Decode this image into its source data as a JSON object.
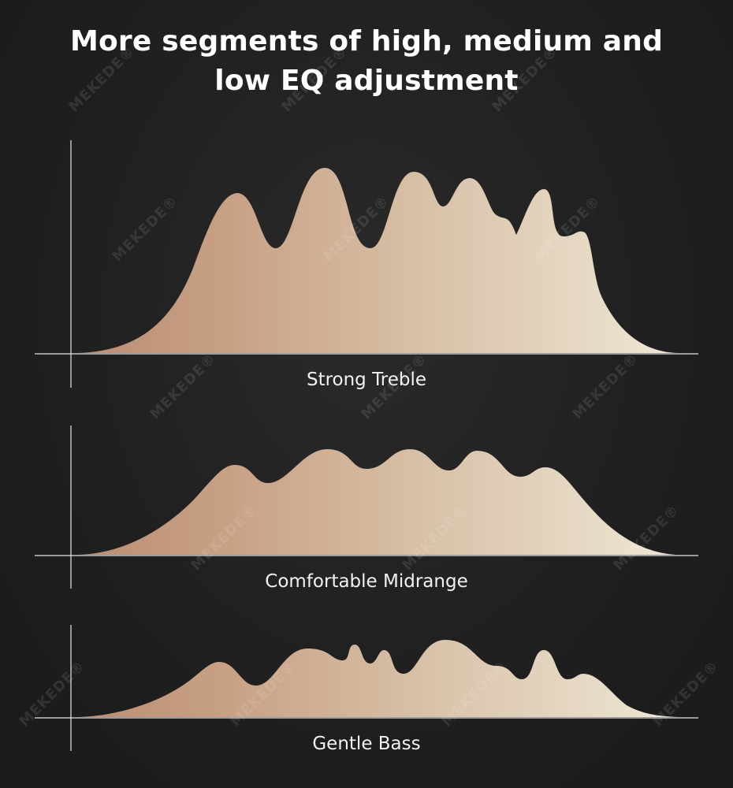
{
  "title": {
    "line1": "More segments of high, medium and",
    "line2": "low EQ adjustment"
  },
  "panels": [
    {
      "label": "Strong Treble"
    },
    {
      "label": "Comfortable Midrange"
    },
    {
      "label": "Gentle Bass"
    }
  ],
  "watermark": "MEKEDE®",
  "colors": {
    "gradient_start": "#c49a80",
    "gradient_end": "#ede4d2",
    "axis": "#e8e8e8"
  }
}
